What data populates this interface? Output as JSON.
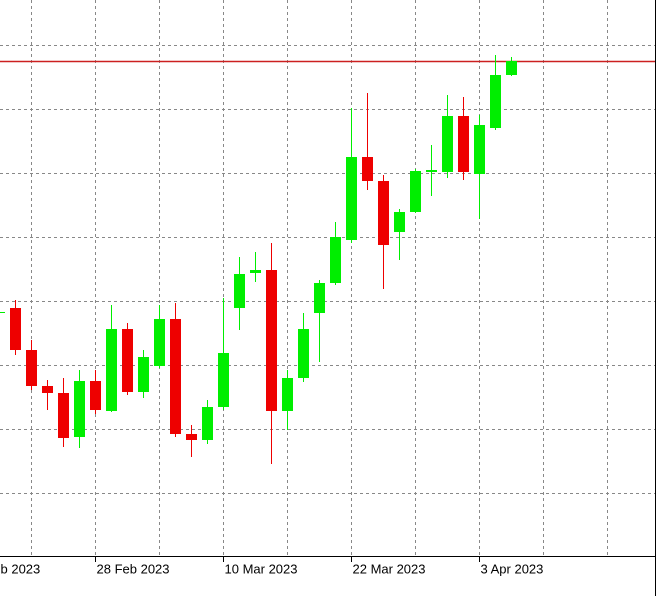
{
  "chart_data": {
    "type": "candlestick",
    "categories": [
      "b 2023",
      null,
      null,
      null,
      null,
      null,
      "28 Feb 2023",
      null,
      null,
      null,
      null,
      null,
      null,
      null,
      "10 Mar 2023",
      null,
      null,
      null,
      null,
      null,
      null,
      null,
      "22 Mar 2023",
      null,
      null,
      null,
      null,
      null,
      null,
      null,
      "3 Apr 2023",
      null,
      null
    ],
    "open": [
      243,
      248,
      206,
      170,
      163,
      119,
      175,
      145,
      227,
      164,
      190,
      237,
      122,
      116,
      149,
      248,
      283,
      286,
      145,
      178,
      243,
      273,
      316,
      399,
      375,
      324,
      344,
      384,
      384,
      440,
      382,
      428,
      481
    ],
    "high": [
      243,
      256,
      216,
      176,
      178,
      186,
      186,
      251,
      233,
      206,
      251,
      253,
      131,
      156,
      258,
      299,
      304,
      313,
      186,
      243,
      276,
      334,
      448,
      463,
      381,
      347,
      387,
      411,
      461,
      459,
      441,
      501,
      499
    ],
    "low": [
      243,
      201,
      166,
      146,
      109,
      108,
      142,
      144,
      161,
      158,
      188,
      119,
      99,
      112,
      146,
      226,
      274,
      92,
      126,
      174,
      194,
      271,
      313,
      366,
      267,
      296,
      343,
      360,
      378,
      376,
      337,
      426,
      480
    ],
    "close": [
      244,
      206,
      170,
      163,
      118,
      175,
      146,
      227,
      164,
      199,
      237,
      122,
      116,
      149,
      203,
      282,
      286,
      145,
      178,
      227,
      273,
      319,
      399,
      375,
      311,
      344,
      385,
      386,
      440,
      384,
      431,
      481,
      495
    ],
    "up_color": "#00ee00",
    "down_color": "#ee0000",
    "ylim": [
      0,
      556
    ],
    "yticks": [
      63,
      127,
      191,
      255,
      319,
      383,
      447,
      511
    ],
    "grid": true,
    "hline": 495,
    "hline_color": "#cc2020"
  }
}
